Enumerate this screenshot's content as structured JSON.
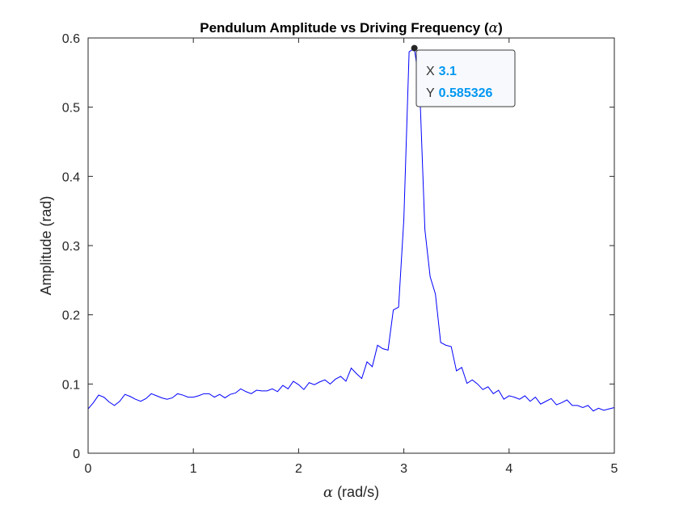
{
  "chart_data": {
    "type": "line",
    "title": "Pendulum Amplitude vs Driving Frequency (",
    "title_symbol": "α",
    "title_suffix": ")",
    "xlabel_symbol": "α",
    "xlabel": " (rad/s)",
    "ylabel": "Amplitude (rad)",
    "xlim": [
      0,
      5
    ],
    "ylim": [
      0,
      0.6
    ],
    "x_ticks": [
      0,
      1,
      2,
      3,
      4,
      5
    ],
    "x_tick_labels": [
      "0",
      "1",
      "2",
      "3",
      "4",
      "5"
    ],
    "y_ticks": [
      0,
      0.1,
      0.2,
      0.3,
      0.4,
      0.5,
      0.6
    ],
    "y_tick_labels": [
      "0",
      "0.1",
      "0.2",
      "0.3",
      "0.4",
      "0.5",
      "0.6"
    ],
    "grid": false,
    "line_color": "#0000ff",
    "series": [
      {
        "x": [
          0,
          0.05,
          0.1,
          0.15,
          0.2,
          0.25,
          0.3,
          0.35,
          0.4,
          0.45,
          0.5,
          0.55,
          0.6,
          0.65,
          0.7,
          0.75,
          0.8,
          0.85,
          0.9,
          0.95,
          1.0,
          1.05,
          1.1,
          1.15,
          1.2,
          1.25,
          1.3,
          1.35,
          1.4,
          1.45,
          1.5,
          1.55,
          1.6,
          1.65,
          1.7,
          1.75,
          1.8,
          1.85,
          1.9,
          1.95,
          2.0,
          2.05,
          2.1,
          2.15,
          2.2,
          2.25,
          2.3,
          2.35,
          2.4,
          2.45,
          2.5,
          2.55,
          2.6,
          2.65,
          2.7,
          2.75,
          2.8,
          2.85,
          2.9,
          2.95,
          3.0,
          3.05,
          3.1,
          3.15,
          3.2,
          3.25,
          3.3,
          3.35,
          3.4,
          3.45,
          3.5,
          3.55,
          3.6,
          3.65,
          3.7,
          3.75,
          3.8,
          3.85,
          3.9,
          3.95,
          4.0,
          4.05,
          4.1,
          4.15,
          4.2,
          4.25,
          4.3,
          4.35,
          4.4,
          4.45,
          4.5,
          4.55,
          4.6,
          4.65,
          4.7,
          4.75,
          4.8,
          4.85,
          4.9,
          4.95,
          5.0
        ],
        "y": [
          0.064,
          0.073,
          0.084,
          0.081,
          0.074,
          0.069,
          0.075,
          0.085,
          0.082,
          0.078,
          0.075,
          0.079,
          0.086,
          0.083,
          0.08,
          0.078,
          0.08,
          0.086,
          0.084,
          0.081,
          0.081,
          0.083,
          0.086,
          0.086,
          0.081,
          0.085,
          0.08,
          0.085,
          0.087,
          0.093,
          0.089,
          0.086,
          0.091,
          0.09,
          0.09,
          0.093,
          0.089,
          0.098,
          0.093,
          0.104,
          0.099,
          0.092,
          0.102,
          0.099,
          0.103,
          0.106,
          0.1,
          0.107,
          0.111,
          0.104,
          0.123,
          0.115,
          0.108,
          0.132,
          0.125,
          0.156,
          0.151,
          0.149,
          0.207,
          0.211,
          0.338,
          0.58,
          0.585,
          0.53,
          0.323,
          0.255,
          0.23,
          0.16,
          0.156,
          0.154,
          0.119,
          0.124,
          0.101,
          0.106,
          0.1,
          0.092,
          0.096,
          0.086,
          0.091,
          0.078,
          0.083,
          0.081,
          0.078,
          0.083,
          0.075,
          0.081,
          0.071,
          0.075,
          0.079,
          0.07,
          0.073,
          0.077,
          0.069,
          0.069,
          0.066,
          0.069,
          0.061,
          0.065,
          0.062,
          0.064,
          0.066
        ]
      }
    ],
    "datatip": {
      "x_key": "X",
      "x_value": "3.1",
      "y_key": "Y",
      "y_value": "0.585326",
      "point": [
        3.1,
        0.585326
      ],
      "value_color": "#0097f2",
      "marker_color": "#262626"
    }
  }
}
